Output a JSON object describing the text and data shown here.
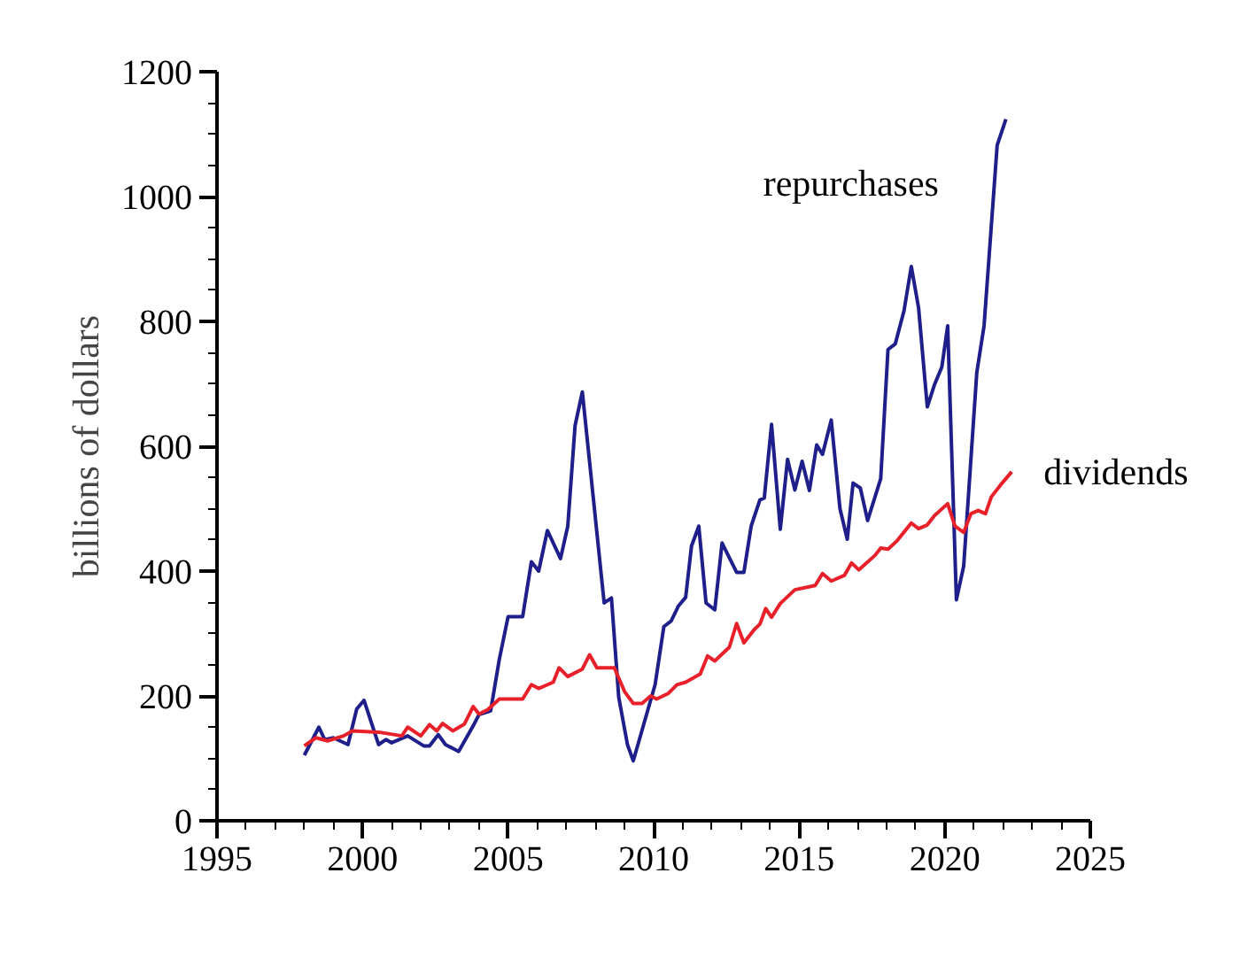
{
  "chart_data": {
    "type": "line",
    "ylabel": "billions of dollars",
    "xlim": [
      1995,
      2025
    ],
    "ylim": [
      0,
      1200
    ],
    "xticks": [
      1995,
      {
        "value": 1996,
        "label": null
      },
      {
        "value": 1997,
        "label": null
      },
      {
        "value": 1998,
        "label": null
      },
      {
        "value": 1999,
        "label": null
      },
      2000,
      {
        "value": 2001,
        "label": null
      },
      {
        "value": 2002,
        "label": null
      },
      {
        "value": 2003,
        "label": null
      },
      {
        "value": 2004,
        "label": null
      },
      2005,
      {
        "value": 2006,
        "label": null
      },
      {
        "value": 2007,
        "label": null
      },
      {
        "value": 2008,
        "label": null
      },
      {
        "value": 2009,
        "label": null
      },
      2010,
      {
        "value": 2011,
        "label": null
      },
      {
        "value": 2012,
        "label": null
      },
      {
        "value": 2013,
        "label": null
      },
      {
        "value": 2014,
        "label": null
      },
      2015,
      {
        "value": 2016,
        "label": null
      },
      {
        "value": 2017,
        "label": null
      },
      {
        "value": 2018,
        "label": null
      },
      {
        "value": 2019,
        "label": null
      },
      2020,
      {
        "value": 2021,
        "label": null
      },
      {
        "value": 2022,
        "label": null
      },
      {
        "value": 2023,
        "label": null
      },
      {
        "value": 2024,
        "label": null
      },
      2025
    ],
    "yticks": [
      0,
      {
        "value": 50,
        "label": null
      },
      {
        "value": 100,
        "label": null
      },
      {
        "value": 150,
        "label": null
      },
      200,
      {
        "value": 250,
        "label": null
      },
      {
        "value": 300,
        "label": null
      },
      {
        "value": 350,
        "label": null
      },
      400,
      {
        "value": 450,
        "label": null
      },
      {
        "value": 500,
        "label": null
      },
      {
        "value": 550,
        "label": null
      },
      600,
      {
        "value": 650,
        "label": null
      },
      {
        "value": 700,
        "label": null
      },
      {
        "value": 750,
        "label": null
      },
      800,
      {
        "value": 850,
        "label": null
      },
      {
        "value": 900,
        "label": null
      },
      {
        "value": 950,
        "label": null
      },
      1000,
      {
        "value": 1050,
        "label": null
      },
      {
        "value": 1100,
        "label": null
      },
      {
        "value": 1150,
        "label": null
      },
      1200
    ],
    "grid": false,
    "legend": false,
    "marker": "none",
    "line_style": "solid",
    "series": [
      {
        "name": "repurchases",
        "color": "#1f1f8c",
        "x": [
          1998.0,
          1998.5,
          1998.7,
          1999.0,
          1999.5,
          1999.8,
          2000.05,
          2000.55,
          2000.8,
          2001.0,
          2001.55,
          2002.1,
          2002.3,
          2002.6,
          2002.85,
          2003.3,
          2003.8,
          2004.0,
          2004.4,
          2004.7,
          2005.0,
          2005.5,
          2005.8,
          2006.05,
          2006.35,
          2006.8,
          2007.05,
          2007.3,
          2007.55,
          2008.3,
          2008.55,
          2008.8,
          2009.1,
          2009.3,
          2010.05,
          2010.35,
          2010.6,
          2010.85,
          2011.1,
          2011.3,
          2011.55,
          2011.8,
          2012.1,
          2012.35,
          2012.85,
          2013.1,
          2013.35,
          2013.65,
          2013.8,
          2014.05,
          2014.35,
          2014.6,
          2014.85,
          2015.1,
          2015.35,
          2015.6,
          2015.8,
          2016.1,
          2016.4,
          2016.65,
          2016.85,
          2017.1,
          2017.35,
          2017.8,
          2018.05,
          2018.3,
          2018.6,
          2018.85,
          2019.1,
          2019.4,
          2019.65,
          2019.9,
          2020.1,
          2020.4,
          2020.65,
          2021.1,
          2021.35,
          2021.8,
          2022.1
        ],
        "values": [
          105,
          150,
          130,
          133,
          122,
          179,
          193,
          122,
          130,
          125,
          136,
          120,
          120,
          138,
          122,
          111,
          152,
          170,
          176,
          259,
          327,
          327,
          415,
          400,
          465,
          420,
          472,
          633,
          687,
          349,
          357,
          198,
          122,
          96,
          218,
          311,
          320,
          344,
          358,
          440,
          472,
          349,
          338,
          445,
          398,
          398,
          472,
          514,
          517,
          635,
          467,
          579,
          530,
          576,
          529,
          602,
          587,
          642,
          500,
          451,
          541,
          533,
          481,
          548,
          755,
          764,
          817,
          888,
          822,
          663,
          699,
          727,
          793,
          354,
          408,
          718,
          793,
          1082,
          1124
        ]
      },
      {
        "name": "dividends",
        "color": "#e8202a",
        "x": [
          1998.0,
          1998.4,
          1998.8,
          1999.35,
          1999.65,
          2000.55,
          2001.35,
          2001.55,
          2002.0,
          2002.3,
          2002.55,
          2002.75,
          2003.1,
          2003.5,
          2003.8,
          2004.0,
          2004.3,
          2004.7,
          2005.5,
          2005.8,
          2006.05,
          2006.55,
          2006.75,
          2007.05,
          2007.55,
          2007.8,
          2008.05,
          2008.65,
          2009.0,
          2009.3,
          2009.6,
          2009.9,
          2010.1,
          2010.5,
          2010.8,
          2011.1,
          2011.6,
          2011.85,
          2012.1,
          2012.6,
          2012.85,
          2013.1,
          2013.45,
          2013.65,
          2013.85,
          2014.05,
          2014.35,
          2014.85,
          2015.55,
          2015.8,
          2016.1,
          2016.55,
          2016.8,
          2017.05,
          2017.6,
          2017.8,
          2018.05,
          2018.35,
          2018.85,
          2019.1,
          2019.4,
          2019.65,
          2020.1,
          2020.35,
          2020.65,
          2020.9,
          2021.15,
          2021.4,
          2021.6,
          2021.9,
          2022.3
        ],
        "values": [
          120,
          133,
          128,
          136,
          144,
          142,
          136,
          150,
          136,
          154,
          144,
          156,
          144,
          155,
          183,
          171,
          178,
          195,
          195,
          218,
          212,
          222,
          245,
          231,
          243,
          266,
          245,
          245,
          207,
          188,
          188,
          200,
          195,
          204,
          218,
          222,
          235,
          264,
          256,
          278,
          316,
          285,
          306,
          315,
          340,
          326,
          348,
          370,
          377,
          396,
          384,
          393,
          413,
          402,
          425,
          437,
          435,
          448,
          477,
          468,
          474,
          489,
          508,
          472,
          462,
          492,
          497,
          492,
          519,
          537,
          559
        ]
      }
    ]
  }
}
